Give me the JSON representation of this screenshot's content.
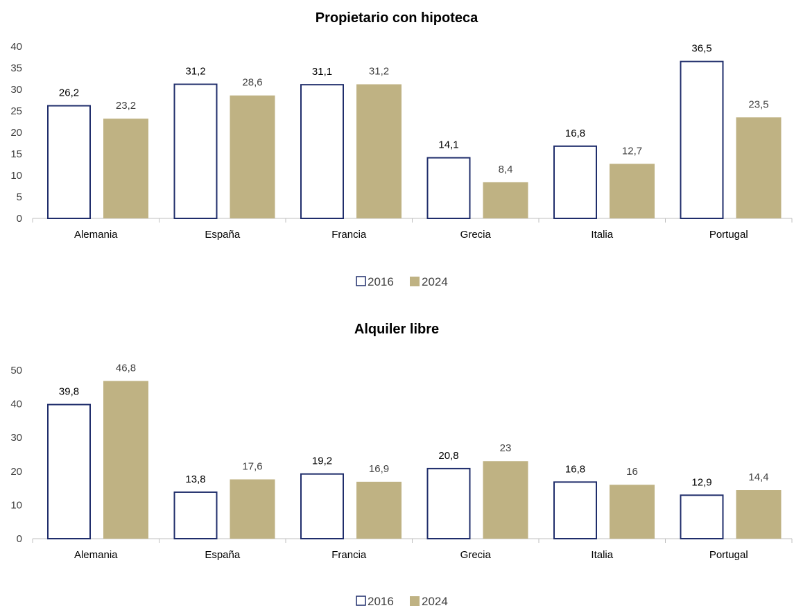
{
  "colors": {
    "outline_2016": "#1f2d6b",
    "fill_2024": "#bfb283",
    "axis": "#bfbfbf",
    "text": "#000000",
    "muted_text": "#404040"
  },
  "chart_data": [
    {
      "type": "bar",
      "title": "Propietario con hipoteca",
      "categories": [
        "Alemania",
        "España",
        "Francia",
        "Grecia",
        "Italia",
        "Portugal"
      ],
      "series": [
        {
          "name": "2016",
          "values": [
            26.2,
            31.2,
            31.1,
            14.1,
            16.8,
            36.5
          ],
          "labels": [
            "26,2",
            "31,2",
            "31,1",
            "14,1",
            "16,8",
            "36,5"
          ]
        },
        {
          "name": "2024",
          "values": [
            23.2,
            28.6,
            31.2,
            8.4,
            12.7,
            23.5
          ],
          "labels": [
            "23,2",
            "28,6",
            "31,2",
            "8,4",
            "12,7",
            "23,5"
          ]
        }
      ],
      "ylim": [
        0,
        40
      ],
      "yticks": [
        0,
        5,
        10,
        15,
        20,
        25,
        30,
        35,
        40
      ],
      "grid": false,
      "legend": "bottom-center"
    },
    {
      "type": "bar",
      "title": "Alquiler libre",
      "categories": [
        "Alemania",
        "España",
        "Francia",
        "Grecia",
        "Italia",
        "Portugal"
      ],
      "series": [
        {
          "name": "2016",
          "values": [
            39.8,
            13.8,
            19.2,
            20.8,
            16.8,
            12.9
          ],
          "labels": [
            "39,8",
            "13,8",
            "19,2",
            "20,8",
            "16,8",
            "12,9"
          ]
        },
        {
          "name": "2024",
          "values": [
            46.8,
            17.6,
            16.9,
            23,
            16,
            14.4
          ],
          "labels": [
            "46,8",
            "17,6",
            "16,9",
            "23",
            "16",
            "14,4"
          ]
        }
      ],
      "ylim": [
        0,
        50
      ],
      "yticks": [
        0,
        10,
        20,
        30,
        40,
        50
      ],
      "grid": false,
      "legend": "bottom-center"
    }
  ]
}
